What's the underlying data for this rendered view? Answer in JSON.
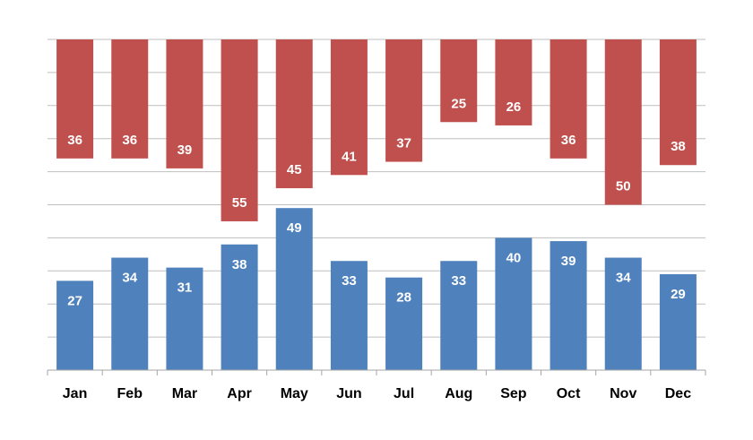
{
  "chart_data": {
    "type": "bar",
    "categories": [
      "Jan",
      "Feb",
      "Mar",
      "Apr",
      "May",
      "Jun",
      "Jul",
      "Aug",
      "Sep",
      "Oct",
      "Nov",
      "Dec"
    ],
    "series": [
      {
        "values": [
          36,
          36,
          39,
          55,
          45,
          41,
          37,
          25,
          26,
          36,
          50,
          38
        ],
        "color": "#c0504d",
        "direction": "down-from-top"
      },
      {
        "values": [
          27,
          34,
          31,
          38,
          49,
          33,
          28,
          33,
          40,
          39,
          34,
          29
        ],
        "color": "#4f81bd",
        "direction": "up-from-bottom"
      }
    ],
    "title": "",
    "xlabel": "",
    "ylabel": "",
    "ylim": [
      0,
      100
    ],
    "grid": true,
    "data_labels": true,
    "label_color": "#ffffff",
    "gridline_color": "#bfbfbf"
  }
}
